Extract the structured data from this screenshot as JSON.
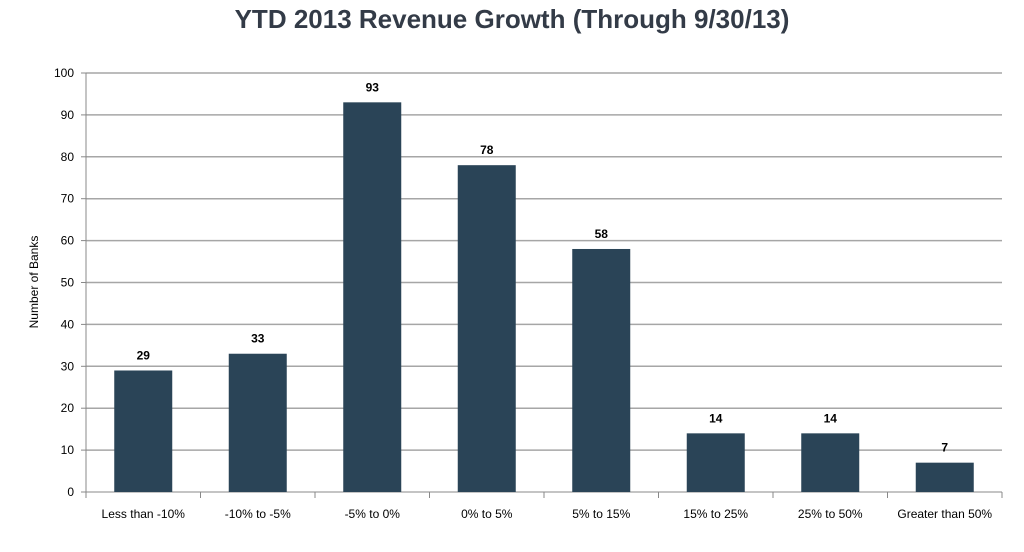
{
  "chart_data": {
    "type": "bar",
    "title": "YTD 2013 Revenue Growth (Through 9/30/13)",
    "xlabel": "",
    "ylabel": "Number of Banks",
    "categories": [
      "Less than -10%",
      "-10% to -5%",
      "-5% to 0%",
      "0% to 5%",
      "5% to 15%",
      "15% to 25%",
      "25% to 50%",
      "Greater than 50%"
    ],
    "values": [
      29,
      33,
      93,
      78,
      58,
      14,
      14,
      7
    ],
    "ylim": [
      0,
      100
    ],
    "yticks": [
      0,
      10,
      20,
      30,
      40,
      50,
      60,
      70,
      80,
      90,
      100
    ],
    "grid": true,
    "legend": "none",
    "colors": {
      "bar": "#2a4457",
      "grid": "#a6a6a6",
      "axis": "#888888",
      "title": "#333b47"
    }
  }
}
